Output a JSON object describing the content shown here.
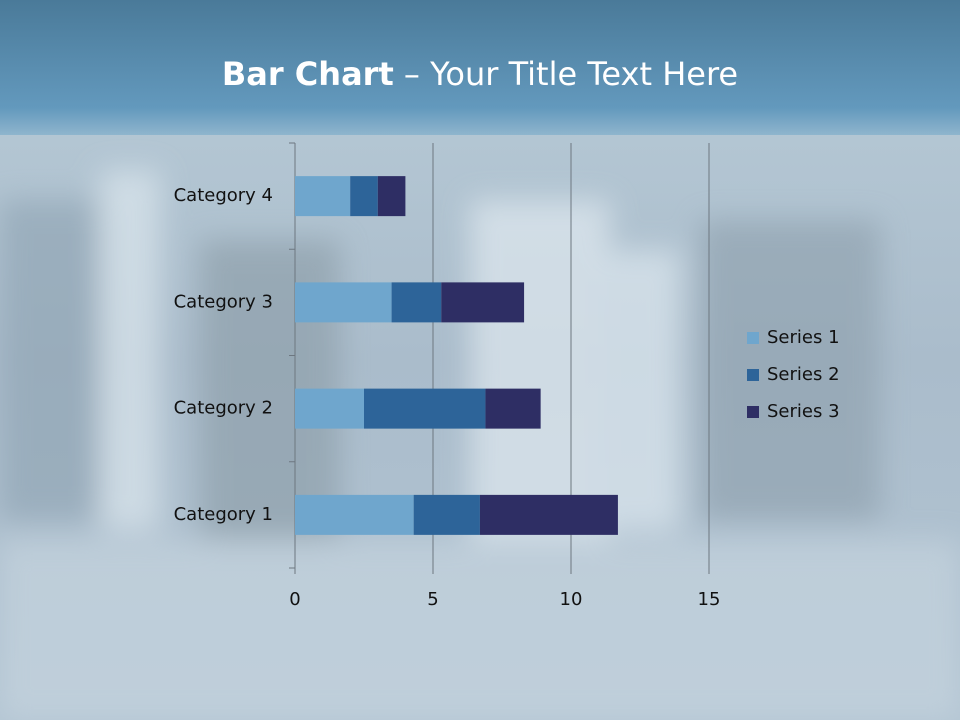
{
  "chart_data": {
    "type": "stacked_barh",
    "title": {
      "bold": "Bar Chart",
      "rest": "– Your Title Text Here"
    },
    "categories": [
      "Category 1",
      "Category 2",
      "Category 3",
      "Category 4"
    ],
    "series": [
      {
        "name": "Series 1",
        "color": "#6fa6cd",
        "values": [
          4.3,
          2.5,
          3.5,
          2
        ]
      },
      {
        "name": "Series 2",
        "color": "#2d6499",
        "values": [
          2.4,
          4.4,
          1.8,
          1
        ]
      },
      {
        "name": "Series 3",
        "color": "#2e2e64",
        "values": [
          5,
          2,
          3,
          1
        ]
      }
    ],
    "xlim": [
      0,
      15
    ],
    "xticks": [
      0,
      5,
      10,
      15
    ],
    "grid": true,
    "legend": "right"
  }
}
